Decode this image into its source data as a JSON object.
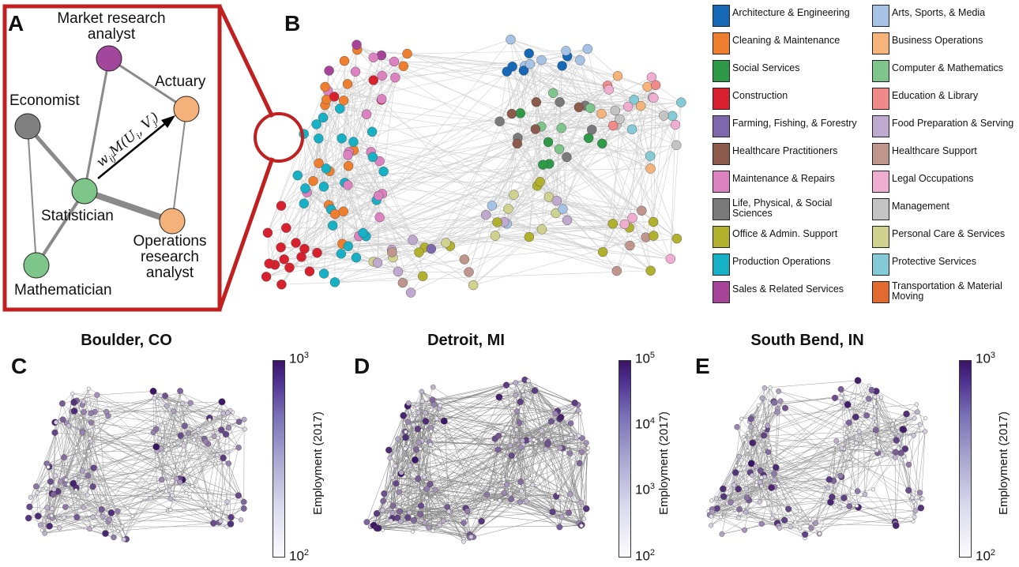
{
  "panels": {
    "a": "A",
    "b": "B",
    "c": "C",
    "d": "D",
    "e": "E"
  },
  "panel_a": {
    "nodes": {
      "market": "Market research analyst",
      "market_line1": "Market research",
      "market_line2": "analyst",
      "actuary": "Actuary",
      "economist": "Economist",
      "statistician": "Statistician",
      "operations_line1": "Operations",
      "operations_line2": "research",
      "operations_line3": "analyst",
      "mathematician": "Mathematician"
    },
    "colors": {
      "market": "#a2479b",
      "actuary": "#f4b27a",
      "economist": "#808080",
      "statistician": "#7dc589",
      "operations": "#f4b27a",
      "mathematician": "#7dc589",
      "frame": "#c0201f"
    },
    "edge_formula": "w_ij M(U_i, V_j)"
  },
  "legend": [
    {
      "label": "Architecture & Engineering",
      "color": "#1669b6"
    },
    {
      "label": "Cleaning & Maintenance",
      "color": "#ef7f2e"
    },
    {
      "label": "Social Services",
      "color": "#2e9a48"
    },
    {
      "label": "Construction",
      "color": "#d9202e"
    },
    {
      "label": "Farming, Fishing, & Forestry",
      "color": "#7d68ad"
    },
    {
      "label": "Healthcare Practitioners",
      "color": "#8b5a4b"
    },
    {
      "label": "Maintenance & Repairs",
      "color": "#dc82c1"
    },
    {
      "label": "Life, Physical, & Social Sciences",
      "color": "#7a7a7a"
    },
    {
      "label": "Office & Admin. Support",
      "color": "#b2b12e"
    },
    {
      "label": "Production Operations",
      "color": "#17b1c6"
    },
    {
      "label": "Sales & Related Services",
      "color": "#a6449a"
    },
    {
      "label": "Arts, Sports, & Media",
      "color": "#a6c3e6"
    },
    {
      "label": "Business Operations",
      "color": "#f6b37a"
    },
    {
      "label": "Computer & Mathematics",
      "color": "#7fc48b"
    },
    {
      "label": "Education & Library",
      "color": "#ef8a88"
    },
    {
      "label": "Food Preparation & Serving",
      "color": "#bfa9cf"
    },
    {
      "label": "Healthcare Support",
      "color": "#bf968c"
    },
    {
      "label": "Legal Occupations",
      "color": "#efaed0"
    },
    {
      "label": "Management",
      "color": "#c4c4c4"
    },
    {
      "label": "Personal Care & Services",
      "color": "#cfd28f"
    },
    {
      "label": "Protective Services",
      "color": "#85cad7"
    },
    {
      "label": "Transportation & Material Moving",
      "color": "#e36a2e"
    }
  ],
  "cities": [
    {
      "name": "Boulder, CO",
      "cb_top": "10",
      "cb_top_exp": "3",
      "cb_bottom": "10",
      "cb_bottom_exp": "2",
      "cb_mid": [],
      "cb_label": "Employment (2017)"
    },
    {
      "name": "Detroit, MI",
      "cb_top": "10",
      "cb_top_exp": "5",
      "cb_bottom": "10",
      "cb_bottom_exp": "2",
      "cb_mid": [
        {
          "base": "10",
          "exp": "4"
        },
        {
          "base": "10",
          "exp": "3"
        }
      ],
      "cb_label": "Employment (2017)"
    },
    {
      "name": "South Bend, IN",
      "cb_top": "10",
      "cb_top_exp": "3",
      "cb_bottom": "10",
      "cb_bottom_exp": "2",
      "cb_mid": [],
      "cb_label": "Employment (2017)"
    }
  ],
  "employment_scale": {
    "low": "#fbfbfd",
    "high": "#3a1466"
  }
}
